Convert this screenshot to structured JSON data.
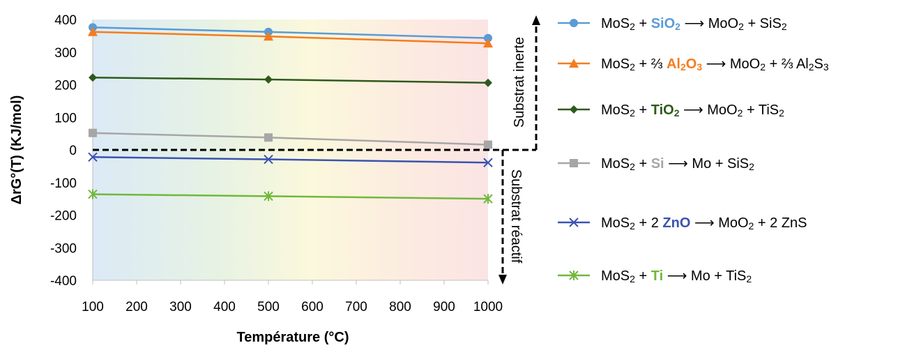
{
  "chart_data": {
    "type": "line",
    "title": "",
    "xlabel": "Température (°C)",
    "ylabel": "ΔrG°(T) (KJ/mol)",
    "xlim": [
      100,
      1000
    ],
    "ylim": [
      -400,
      400
    ],
    "x_ticks": [
      "100",
      "200",
      "300",
      "400",
      "500",
      "600",
      "700",
      "800",
      "900",
      "1000"
    ],
    "y_ticks": [
      "400",
      "300",
      "200",
      "100",
      "0",
      "-100",
      "-200",
      "-300",
      "-400"
    ],
    "grid": false,
    "background": "gradient blue-green-yellow-pink",
    "zero_line": {
      "value": 0,
      "style": "dashed",
      "color": "#000000"
    },
    "annotations": {
      "above": "Substrat inerte",
      "below": "Substrat réactif"
    },
    "legend_position": "right",
    "series": [
      {
        "name": "MoS2 + SiO2 → MoO2 + SiS2",
        "legend": [
          {
            "t": "MoS"
          },
          {
            "s": "2"
          },
          {
            "t": " + "
          },
          {
            "b": "SiO",
            "c": "#5b9bd5"
          },
          {
            "s": "2",
            "c": "#5b9bd5",
            "bold": true
          },
          {
            "t": " ⟶ MoO"
          },
          {
            "s": "2"
          },
          {
            "t": " + SiS"
          },
          {
            "s": "2"
          }
        ],
        "x": [
          100,
          500,
          1000
        ],
        "values": [
          376,
          362,
          343
        ],
        "color": "#5b9bd5",
        "marker": "circle"
      },
      {
        "name": "MoS2 + ⅔ Al2O3 → MoO2 + ⅔ Al2S3",
        "legend": [
          {
            "t": "MoS"
          },
          {
            "s": "2"
          },
          {
            "t": " + ⅔ "
          },
          {
            "b": "Al",
            "c": "#f47c20"
          },
          {
            "s": "2",
            "c": "#f47c20",
            "bold": true
          },
          {
            "b": "O",
            "c": "#f47c20"
          },
          {
            "s": "3",
            "c": "#f47c20",
            "bold": true
          },
          {
            "t": " ⟶ MoO"
          },
          {
            "s": "2"
          },
          {
            "t": " + ⅔ Al"
          },
          {
            "s": "2"
          },
          {
            "t": "S"
          },
          {
            "s": "3"
          }
        ],
        "x": [
          100,
          500,
          1000
        ],
        "values": [
          362,
          348,
          327
        ],
        "color": "#f47c20",
        "marker": "triangle"
      },
      {
        "name": "MoS2 + TiO2 → MoO2 + TiS2",
        "legend": [
          {
            "t": "MoS"
          },
          {
            "s": "2"
          },
          {
            "t": " + "
          },
          {
            "b": "TiO",
            "c": "#2e5a1c"
          },
          {
            "s": "2",
            "c": "#2e5a1c",
            "bold": true
          },
          {
            "t": " ⟶ MoO"
          },
          {
            "s": "2"
          },
          {
            "t": " + TiS"
          },
          {
            "s": "2"
          }
        ],
        "x": [
          100,
          500,
          1000
        ],
        "values": [
          222,
          216,
          206
        ],
        "color": "#2e5a1c",
        "marker": "diamond"
      },
      {
        "name": "MoS2 + Si → Mo + SiS2",
        "legend": [
          {
            "t": "MoS"
          },
          {
            "s": "2"
          },
          {
            "t": " + "
          },
          {
            "b": "Si",
            "c": "#a6a6a6"
          },
          {
            "t": " ⟶ Mo + SiS"
          },
          {
            "s": "2"
          }
        ],
        "x": [
          100,
          500,
          1000
        ],
        "values": [
          52,
          38,
          16
        ],
        "color": "#a6a6a6",
        "marker": "square"
      },
      {
        "name": "MoS2 + 2 ZnO → MoO2 + 2 ZnS",
        "legend": [
          {
            "t": "MoS"
          },
          {
            "s": "2"
          },
          {
            "t": " + 2 "
          },
          {
            "b": "ZnO",
            "c": "#3b53b0"
          },
          {
            "t": " ⟶ MoO"
          },
          {
            "s": "2"
          },
          {
            "t": " + 2 ZnS"
          }
        ],
        "x": [
          100,
          500,
          1000
        ],
        "values": [
          -22,
          -29,
          -39
        ],
        "color": "#3b53b0",
        "marker": "x"
      },
      {
        "name": "MoS2 + Ti → Mo + TiS2",
        "legend": [
          {
            "t": "MoS"
          },
          {
            "s": "2"
          },
          {
            "t": " + "
          },
          {
            "b": "Ti",
            "c": "#70b83c"
          },
          {
            "t": " ⟶ Mo + TiS"
          },
          {
            "s": "2"
          }
        ],
        "x": [
          100,
          500,
          1000
        ],
        "values": [
          -136,
          -142,
          -150
        ],
        "color": "#70b83c",
        "marker": "star"
      }
    ]
  }
}
